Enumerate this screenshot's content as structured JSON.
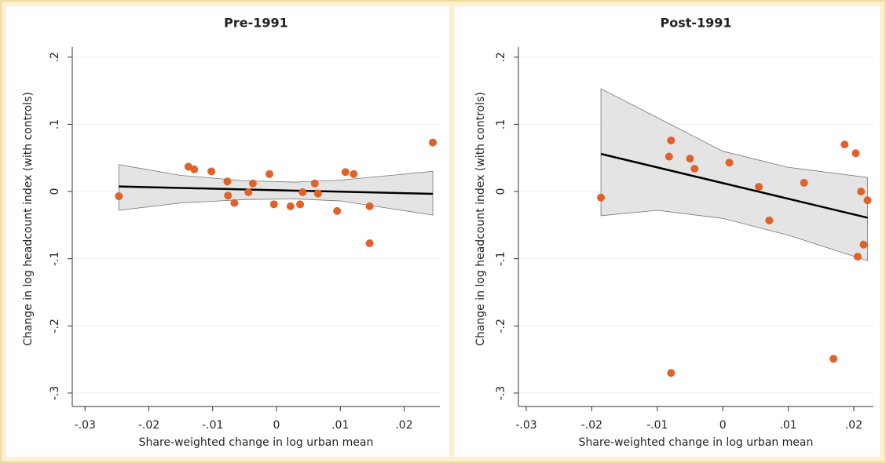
{
  "chart_data": [
    {
      "type": "scatter",
      "title": "Pre-1991",
      "x_label": "Share-weighted change in log urban mean",
      "y_label": "Change in log headcount index (with controls)",
      "xlim": [
        -0.032,
        0.0256
      ],
      "ylim": [
        -0.32,
        0.215
      ],
      "xticks": [
        {
          "value": -0.03,
          "label": "-.03"
        },
        {
          "value": -0.02,
          "label": "-.02"
        },
        {
          "value": -0.01,
          "label": "-.01"
        },
        0,
        {
          "value": 0.01,
          "label": ".01"
        },
        {
          "value": 0.02,
          "label": ".02"
        }
      ],
      "yticks": [
        {
          "value": 0.2,
          "label": ".2"
        },
        {
          "value": 0.1,
          "label": ".1"
        },
        0,
        {
          "value": -0.1,
          "label": "-.1"
        },
        {
          "value": -0.2,
          "label": "-.2"
        },
        {
          "value": -0.3,
          "label": "-.3"
        }
      ],
      "grid": true,
      "color": "#e0622a",
      "x": [
        -0.0247,
        -0.0138,
        -0.0129,
        -0.0102,
        -0.0077,
        -0.0076,
        -0.0066,
        -0.0044,
        -0.0037,
        -0.0011,
        -0.0004,
        0.0022,
        0.0037,
        0.0041,
        0.006,
        0.0065,
        0.0095,
        0.0108,
        0.0121,
        0.0146,
        0.0146,
        0.0245
      ],
      "values": [
        -0.007,
        0.037,
        0.033,
        0.03,
        0.015,
        -0.006,
        -0.017,
        -0.001,
        0.012,
        0.026,
        -0.019,
        -0.022,
        -0.019,
        -0.001,
        0.012,
        -0.003,
        -0.029,
        0.029,
        0.026,
        -0.022,
        -0.077,
        0.073
      ],
      "fit": {
        "x": [
          -0.0247,
          0.0245
        ],
        "values": [
          0.0075,
          -0.0035
        ]
      },
      "band": {
        "x": [
          -0.0247,
          -0.015,
          -0.005,
          0.003,
          0.01,
          0.0245
        ],
        "upper": [
          0.04,
          0.024,
          0.016,
          0.014,
          0.017,
          0.03
        ],
        "lower": [
          -0.028,
          -0.017,
          -0.012,
          -0.011,
          -0.014,
          -0.035
        ]
      }
    },
    {
      "type": "scatter",
      "title": "Post-1991",
      "x_label": "Share-weighted change in log urban mean",
      "y_label": "Change in log headcount index (with controls)",
      "xlim": [
        -0.0312,
        0.023
      ],
      "ylim": [
        -0.32,
        0.215
      ],
      "xticks": [
        {
          "value": -0.03,
          "label": "-.03"
        },
        {
          "value": -0.02,
          "label": "-.02"
        },
        {
          "value": -0.01,
          "label": "-.01"
        },
        0,
        {
          "value": 0.01,
          "label": ".01"
        },
        {
          "value": 0.02,
          "label": ".02"
        }
      ],
      "yticks": [
        {
          "value": 0.2,
          "label": ".2"
        },
        {
          "value": 0.1,
          "label": ".1"
        },
        0,
        {
          "value": -0.1,
          "label": "-.1"
        },
        {
          "value": -0.2,
          "label": "-.2"
        },
        {
          "value": -0.3,
          "label": "-.3"
        }
      ],
      "grid": true,
      "color": "#e0622a",
      "x": [
        -0.0186,
        -0.0082,
        -0.0079,
        -0.0079,
        -0.005,
        -0.0043,
        0.001,
        0.0055,
        0.0071,
        0.0124,
        0.0169,
        0.0186,
        0.0203,
        0.0211,
        0.0206,
        0.0215,
        0.0221
      ],
      "values": [
        -0.009,
        0.052,
        0.076,
        -0.27,
        0.049,
        0.034,
        0.043,
        0.007,
        -0.043,
        0.013,
        -0.249,
        0.07,
        0.057,
        0.0,
        -0.097,
        -0.079,
        -0.013
      ],
      "fit": {
        "x": [
          -0.0186,
          0.0221
        ],
        "values": [
          0.056,
          -0.039
        ]
      },
      "band": {
        "x": [
          -0.0186,
          -0.01,
          0,
          0.01,
          0.0221
        ],
        "upper": [
          0.153,
          0.11,
          0.06,
          0.036,
          0.021
        ],
        "lower": [
          -0.036,
          -0.028,
          -0.04,
          -0.065,
          -0.103
        ]
      }
    }
  ]
}
